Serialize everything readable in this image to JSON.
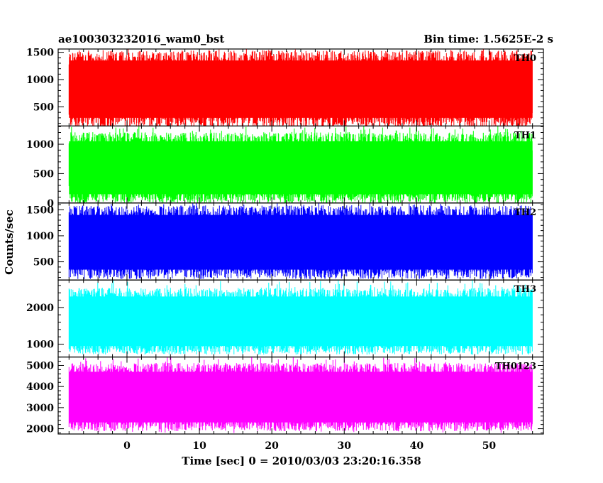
{
  "chart_data": {
    "type": "line",
    "title_left": "ae100303232016_wam0_bst",
    "title_right": "Bin time: 1.5625E-2 s",
    "xlabel": "Time [sec] 0 = 2010/03/03 23:20:16.358",
    "ylabel": "Counts/sec",
    "xlim": [
      -9.5,
      57.5
    ],
    "xticks": [
      0,
      10,
      20,
      30,
      40,
      50
    ],
    "xminor_step": 2,
    "data_x_range": [
      -8,
      56
    ],
    "grid": false,
    "panels": [
      {
        "name": "TH0",
        "color": "#ff0000",
        "ylim": [
          150,
          1560
        ],
        "yticks": [
          500,
          1000,
          1500
        ],
        "yminor_step": 100,
        "envelope": {
          "low": 300,
          "high": 1350,
          "peak_min": 200,
          "peak_max": 1560
        }
      },
      {
        "name": "TH1",
        "color": "#00ff00",
        "ylim": [
          0,
          1310
        ],
        "yticks": [
          0,
          500,
          1000
        ],
        "yminor_step": 100,
        "envelope": {
          "low": 150,
          "high": 1050,
          "peak_min": 20,
          "peak_max": 1310
        }
      },
      {
        "name": "TH2",
        "color": "#0000ff",
        "ylim": [
          150,
          1630
        ],
        "yticks": [
          500,
          1000,
          1500
        ],
        "yminor_step": 100,
        "envelope": {
          "low": 350,
          "high": 1400,
          "peak_min": 200,
          "peak_max": 1630
        }
      },
      {
        "name": "TH3",
        "color": "#00ffff",
        "ylim": [
          650,
          2750
        ],
        "yticks": [
          1000,
          2000
        ],
        "yminor_step": 200,
        "envelope": {
          "low": 950,
          "high": 2300,
          "peak_min": 750,
          "peak_max": 2750
        }
      },
      {
        "name": "TH0123",
        "color": "#ff00ff",
        "ylim": [
          1750,
          5400
        ],
        "yticks": [
          2000,
          3000,
          4000,
          5000
        ],
        "yminor_step": 200,
        "envelope": {
          "low": 2300,
          "high": 4700,
          "peak_min": 1800,
          "peak_max": 5400
        }
      }
    ]
  }
}
